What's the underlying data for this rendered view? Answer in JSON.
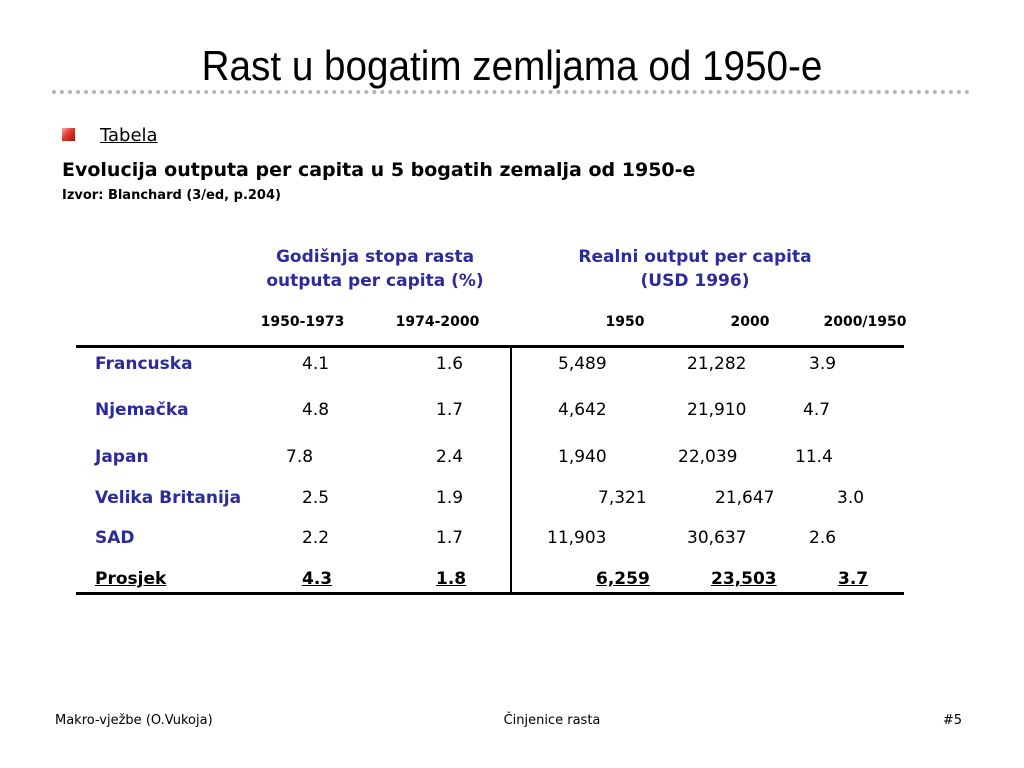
{
  "slide": {
    "title": "Rast u bogatim zemljama od 1950-e",
    "bullet": "Tabela",
    "subtitle": "Evolucija outputa per capita u 5 bogatih zemalja od 1950-e",
    "source": "Izvor: Blanchard (3/ed, p.204)"
  },
  "table": {
    "group_headers": [
      {
        "line1": "Godišnja stopa rasta",
        "line2": "outputa per capita (%)"
      },
      {
        "line1": "Realni output per capita",
        "line2": "(USD 1996)"
      }
    ],
    "column_headers": [
      "1950-1973",
      "1974-2000",
      "1950",
      "2000",
      "2000/1950"
    ],
    "rows": [
      {
        "country": "Francuska",
        "values": [
          "4.1",
          "1.6",
          "5,489",
          "21,282",
          "3.9"
        ]
      },
      {
        "country": "Njemačka",
        "values": [
          "4.8",
          "1.7",
          "4,642",
          "21,910",
          "4.7"
        ]
      },
      {
        "country": "Japan",
        "values": [
          "7.8",
          "2.4",
          "1,940",
          "22,039",
          "11.4"
        ]
      },
      {
        "country": "Velika Britanija",
        "values": [
          "2.5",
          "1.9",
          "7,321",
          "21,647",
          "3.0"
        ]
      },
      {
        "country": "SAD",
        "values": [
          "2.2",
          "1.7",
          "11,903",
          "30,637",
          "2.6"
        ]
      },
      {
        "country": "Prosjek",
        "values": [
          "4.3",
          "1.8",
          "6,259",
          "23,503",
          "3.7"
        ]
      }
    ]
  },
  "footer": {
    "left": "Makro-vježbe (O.Vukoja)",
    "center": "Činjenice rasta",
    "right": "#5"
  },
  "colors": {
    "country_text": "#2b2b9b",
    "bullet_red": "#e0392d",
    "dotted_rule": "#b5b5b5"
  }
}
